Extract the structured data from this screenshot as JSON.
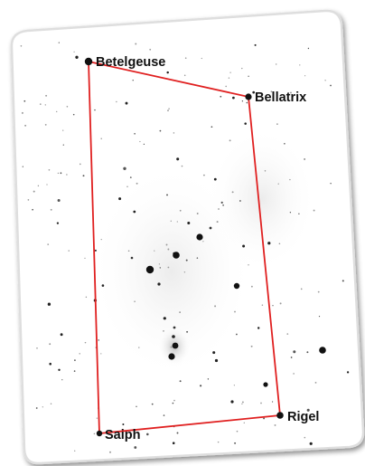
{
  "stars": [
    {
      "id": "betelgeuse",
      "label": "Betelgeuse"
    },
    {
      "id": "bellatrix",
      "label": "Bellatrix"
    },
    {
      "id": "rigel",
      "label": "Rigel"
    },
    {
      "id": "saiph",
      "label": "Saiph"
    }
  ],
  "colors": {
    "outline": "#e02020",
    "star": "#111111",
    "card_background": "#ffffff",
    "card_border": "#dedede"
  }
}
